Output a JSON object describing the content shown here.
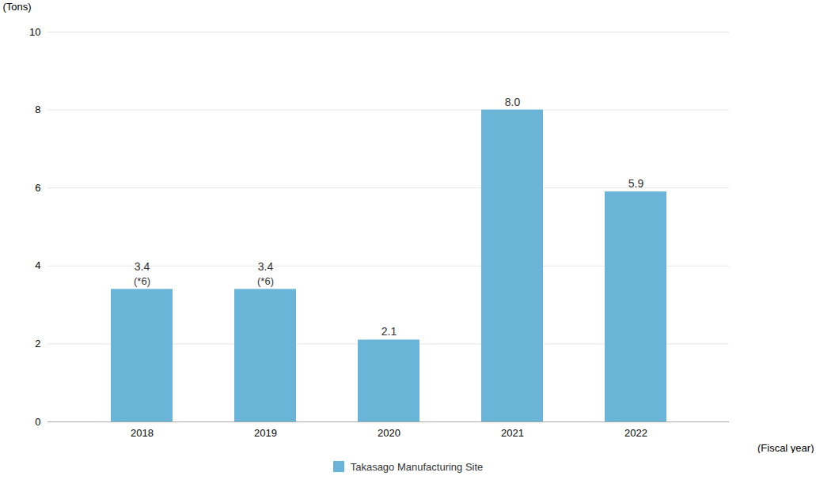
{
  "chart_data": {
    "type": "bar",
    "categories": [
      "2018",
      "2019",
      "2020",
      "2021",
      "2022"
    ],
    "series": [
      {
        "name": "Takasago Manufacturing Site",
        "color": "#6ab4d8",
        "values": [
          3.4,
          3.4,
          2.1,
          8.0,
          5.9
        ],
        "value_labels": [
          "3.4",
          "3.4",
          "2.1",
          "8.0",
          "5.9"
        ]
      }
    ],
    "annotations": [
      {
        "x": "2018",
        "text": "(*6)"
      },
      {
        "x": "2019",
        "text": "(*6)"
      }
    ],
    "xlabel": "(Fiscal year)",
    "ylabel": "(Tons)",
    "ylim": [
      0,
      10
    ],
    "yticks": [
      0,
      2,
      4,
      6,
      8,
      10
    ],
    "grid": true,
    "data_labels": true,
    "legend": "bottom"
  }
}
